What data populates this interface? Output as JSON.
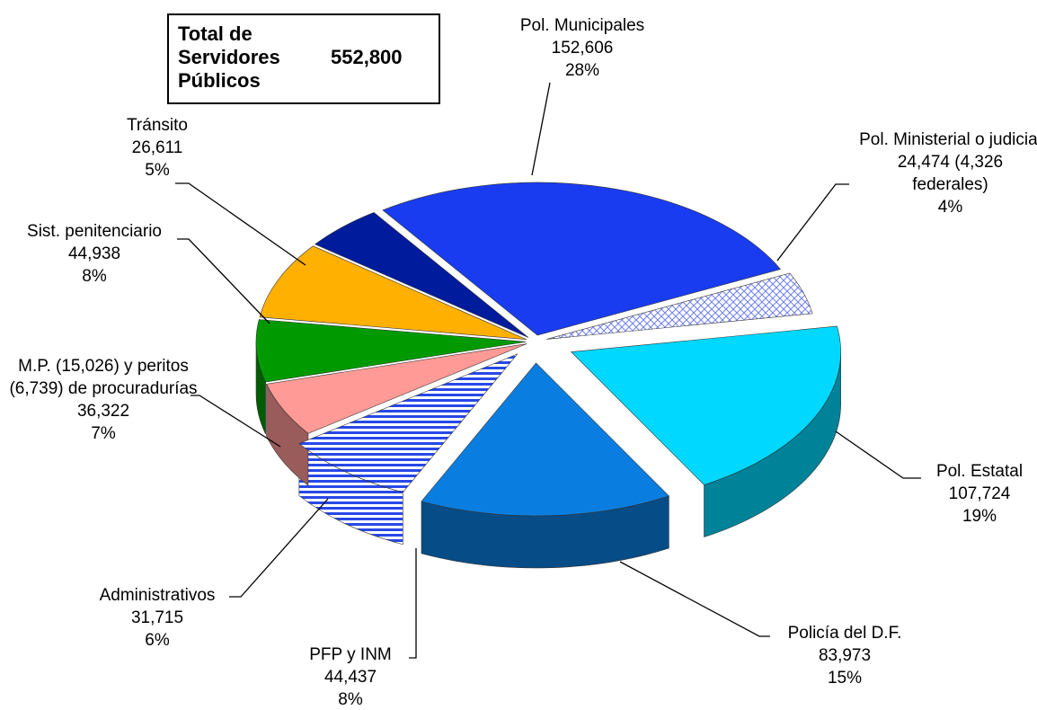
{
  "chart_data": {
    "type": "pie3d",
    "annotation": {
      "label": "Total de Servidores Públicos",
      "value_label": "552,800"
    },
    "categories": [
      "Pol. Municipales",
      "Pol. Ministerial o judicial",
      "Pol. Estatal",
      "Policía del D.F.",
      "PFP y INM",
      "Administrativos",
      "M.P. (15,026) y peritos (6,739) de procuradurías",
      "Sist. penitenciario",
      "Tránsito"
    ],
    "values": [
      152606,
      24474,
      107724,
      83973,
      44437,
      31715,
      36322,
      44938,
      26611
    ],
    "value_labels": [
      "152,606",
      "24,474 (4,326 federales)",
      "107,724",
      "83,973",
      "44,437",
      "31,715",
      "36,322",
      "44,938",
      "26,611"
    ],
    "percent_labels": [
      "28%",
      "4%",
      "19%",
      "15%",
      "8%",
      "6%",
      "7%",
      "8%",
      "5%"
    ],
    "colors": [
      "#1a3cf0",
      "#c8d0ff",
      "#00d8ff",
      "#0a7ee0",
      "#2848e8",
      "#ff9a96",
      "#009a00",
      "#ffb000",
      "#001c9c"
    ],
    "patterns": [
      null,
      "crosshatch",
      null,
      null,
      "stripes",
      null,
      null,
      null,
      null
    ]
  }
}
